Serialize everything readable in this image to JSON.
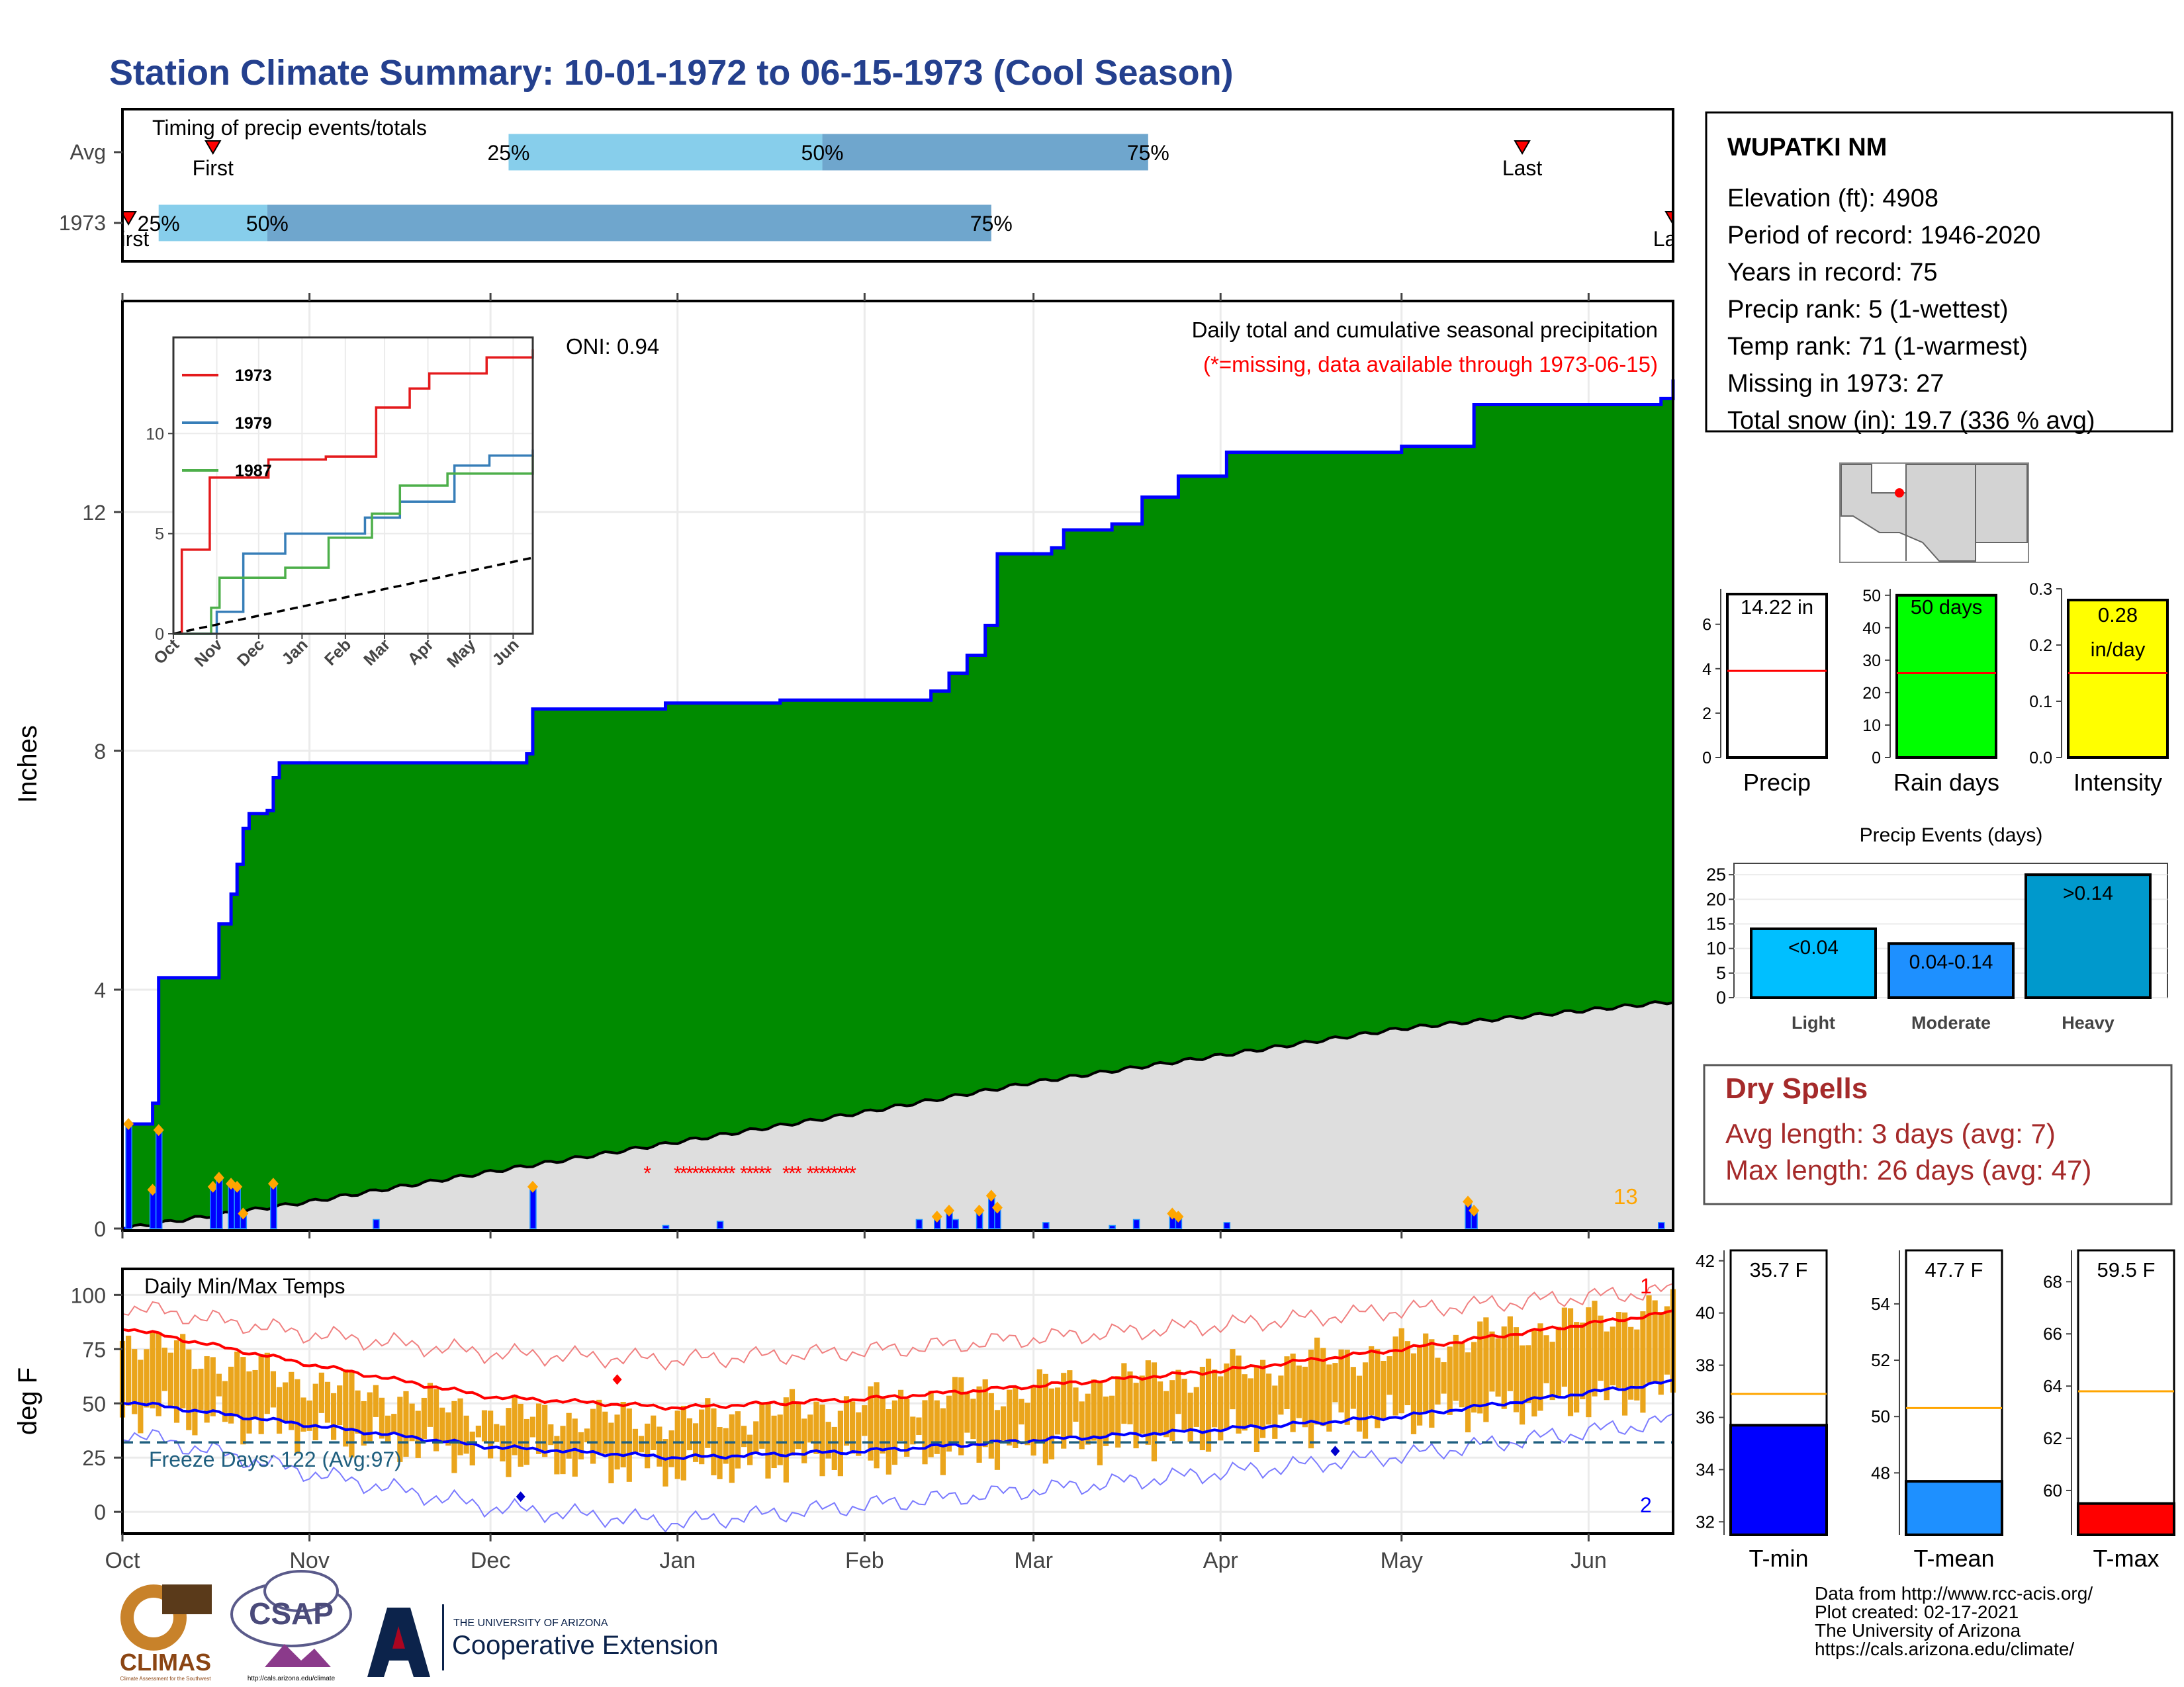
{
  "title": "Station Climate Summary: 10-01-1972 to 06-15-1973 (Cool Season)",
  "colors": {
    "title_blue": "#24408e",
    "precip_green": "#008b00",
    "cum_line_blue": "#0000ff",
    "avg_gray": "#dedede",
    "light_blue": "#87ceeb",
    "mid_blue": "#6fa6cd",
    "red": "#ff0000",
    "orange": "#ffa500",
    "gold": "#eaa51c",
    "yellow": "#ffff00",
    "green_bar": "#00ff00",
    "dry_red": "#a52a2a",
    "event_blue": "#00bfff",
    "event_heavy": "#0099cc",
    "tmean_blue": "#1e90ff",
    "freeze_line": "#1f5f7f"
  },
  "timing_panel": {
    "title": "Timing of precip events/totals",
    "rows": [
      {
        "label": "Avg",
        "first_label": "First",
        "last_label": "Last",
        "first": "1972-10-16",
        "last": "1973-05-21",
        "p25": "1972-12-04",
        "p50": "1973-01-25",
        "p75": "1973-03-20",
        "q_labels": [
          "25%",
          "50%",
          "75%"
        ]
      },
      {
        "label": "1973",
        "first_label": "First",
        "last_label": "Last",
        "first": "1972-10-02",
        "last": "1973-06-15",
        "p25": "1972-10-07",
        "p50": "1972-10-25",
        "p75": "1973-02-22",
        "q_labels": [
          "25%",
          "50%",
          "75%"
        ]
      }
    ]
  },
  "precip_panel": {
    "ylabel": "Inches",
    "yticks": [
      0,
      4,
      8,
      12
    ],
    "ylim": [
      0,
      15.5
    ],
    "header": "Daily total and cumulative seasonal precipitation",
    "missing_note": "(*=missing, data available through 1973-06-15)",
    "oni": "ONI: 0.94",
    "corner_count": "13"
  },
  "inset": {
    "yticks": [
      0,
      5,
      10
    ],
    "xticks": [
      "Oct",
      "Nov",
      "Dec",
      "Jan",
      "Feb",
      "Mar",
      "Apr",
      "May",
      "Jun"
    ],
    "legend": [
      {
        "name": "1973",
        "color": "#e41a1c"
      },
      {
        "name": "1979",
        "color": "#377eb8"
      },
      {
        "name": "1987",
        "color": "#4daf4a"
      }
    ]
  },
  "temp_panel": {
    "ylabel": "deg F",
    "title": "Daily Min/Max Temps",
    "yticks": [
      0,
      25,
      50,
      75,
      100
    ],
    "freeze_text": "Freeze Days: 122 (Avg:97)",
    "record_hi_count": "1",
    "record_lo_count": "2"
  },
  "x_months": [
    "Oct",
    "Nov",
    "Dec",
    "Jan",
    "Feb",
    "Mar",
    "Apr",
    "May",
    "Jun"
  ],
  "station": {
    "name": "WUPATKI NM",
    "lines": [
      "Elevation (ft): 4908",
      "Period of record: 1946-2020",
      "Years in record: 75",
      "Precip rank: 5 (1-wettest)",
      "Temp rank: 71 (1-warmest)",
      "Missing in 1973: 27",
      "Total snow (in): 19.7 (336 % avg)"
    ]
  },
  "summary_bars": [
    {
      "name": "Precip",
      "label": "14.22 in",
      "value": 14.22,
      "avg": 3.9,
      "ymax": 7.6,
      "ticks": [
        0,
        2,
        4,
        6
      ],
      "fill": "#ffffff"
    },
    {
      "name": "Rain days",
      "label": "50 days",
      "value": 50,
      "avg": 26,
      "ymax": 52,
      "ticks": [
        0,
        10,
        20,
        30,
        40,
        50
      ],
      "fill": "#00ff00"
    },
    {
      "name": "Intensity",
      "label": "0.28 in/day",
      "label_lines": [
        "0.28",
        "in/day"
      ],
      "value": 0.28,
      "avg": 0.15,
      "ymax": 0.3,
      "ticks": [
        "0.0",
        "0.1",
        "0.2",
        "0.3"
      ],
      "fill": "#ffff00"
    }
  ],
  "precip_events": {
    "title": "Precip Events (days)",
    "ticks": [
      0,
      5,
      10,
      15,
      20,
      25
    ],
    "bars": [
      {
        "category": "Light",
        "label": "<0.04",
        "value": 14,
        "fill": "#00bfff"
      },
      {
        "category": "Moderate",
        "label": "0.04-0.14",
        "value": 11,
        "fill": "#1e90ff"
      },
      {
        "category": "Heavy",
        "label": ">0.14",
        "value": 25,
        "fill": "#0099cc"
      }
    ]
  },
  "dry_spells": {
    "title": "Dry Spells",
    "avg_line": "Avg length: 3 days (avg: 7)",
    "max_line": "Max length: 26 days (avg: 47)"
  },
  "temp_bars": [
    {
      "name": "T-min",
      "label": "35.7 F",
      "value": 35.7,
      "avg": 36.9,
      "ymin": 31.5,
      "ymax": 42.4,
      "ticks": [
        32,
        34,
        36,
        38,
        40,
        42
      ],
      "fill": "#0000ff"
    },
    {
      "name": "T-mean",
      "label": "47.7 F",
      "value": 47.7,
      "avg": 50.3,
      "ymin": 45.8,
      "ymax": 55.9,
      "ticks": [
        48,
        50,
        52,
        54
      ],
      "fill": "#1e90ff"
    },
    {
      "name": "T-max",
      "label": "59.5 F",
      "value": 59.5,
      "avg": 63.8,
      "ymin": 58.3,
      "ymax": 69.2,
      "ticks": [
        60,
        62,
        64,
        66,
        68
      ],
      "fill": "#ff0000"
    }
  ],
  "footer": {
    "lines": [
      "Data from http://www.rcc-acis.org/",
      "Plot created: 02-17-2021",
      "The University of Arizona",
      "https://cals.arizona.edu/climate/"
    ],
    "climas": "CLIMAS",
    "climas_sub": "Climate Assessment for the Southwest",
    "csap": "CSAP",
    "csap_url": "http://cals.arizona.edu/climate",
    "ua_line1": "THE UNIVERSITY OF ARIZONA",
    "ua_line2": "Cooperative Extension"
  },
  "chart_data": {
    "type": "area",
    "title": "Daily total and cumulative seasonal precipitation",
    "xlabel": "",
    "ylabel": "Inches",
    "ylim": [
      0,
      15.5
    ],
    "x_range": [
      "1972-10-01",
      "1973-06-15"
    ],
    "cumulative_1973": [
      [
        "1972-10-01",
        0
      ],
      [
        "1972-10-02",
        1.75
      ],
      [
        "1972-10-05",
        1.75
      ],
      [
        "1972-10-06",
        2.1
      ],
      [
        "1972-10-07",
        4.2
      ],
      [
        "1972-10-16",
        4.2
      ],
      [
        "1972-10-17",
        5.1
      ],
      [
        "1972-10-19",
        5.6
      ],
      [
        "1972-10-20",
        6.1
      ],
      [
        "1972-10-21",
        6.7
      ],
      [
        "1972-10-22",
        6.95
      ],
      [
        "1972-10-25",
        7.0
      ],
      [
        "1972-10-26",
        7.55
      ],
      [
        "1972-10-27",
        7.8
      ],
      [
        "1972-12-07",
        7.95
      ],
      [
        "1972-12-08",
        8.7
      ],
      [
        "1972-12-30",
        8.8
      ],
      [
        "1973-01-18",
        8.85
      ],
      [
        "1973-02-12",
        9.0
      ],
      [
        "1973-02-15",
        9.3
      ],
      [
        "1973-02-18",
        9.6
      ],
      [
        "1973-02-21",
        10.1
      ],
      [
        "1973-02-23",
        11.3
      ],
      [
        "1973-03-04",
        11.4
      ],
      [
        "1973-03-06",
        11.7
      ],
      [
        "1973-03-14",
        11.8
      ],
      [
        "1973-03-19",
        12.25
      ],
      [
        "1973-03-25",
        12.6
      ],
      [
        "1973-04-02",
        13.0
      ],
      [
        "1973-05-01",
        13.1
      ],
      [
        "1973-05-13",
        13.8
      ],
      [
        "1973-06-13",
        13.9
      ],
      [
        "1973-06-15",
        14.22
      ]
    ],
    "avg_cumulative": [
      [
        "1972-10-01",
        0
      ],
      [
        "1972-11-01",
        0.45
      ],
      [
        "1972-12-01",
        0.95
      ],
      [
        "1973-01-01",
        1.45
      ],
      [
        "1973-02-01",
        1.95
      ],
      [
        "1973-03-01",
        2.45
      ],
      [
        "1973-04-01",
        2.9
      ],
      [
        "1973-05-01",
        3.35
      ],
      [
        "1973-06-15",
        3.8
      ]
    ],
    "daily_bars": [
      [
        "1972-10-02",
        1.75
      ],
      [
        "1972-10-06",
        0.65
      ],
      [
        "1972-10-07",
        1.65
      ],
      [
        "1972-10-16",
        0.7
      ],
      [
        "1972-10-17",
        0.85
      ],
      [
        "1972-10-19",
        0.75
      ],
      [
        "1972-10-20",
        0.7
      ],
      [
        "1972-10-21",
        0.25
      ],
      [
        "1972-10-26",
        0.75
      ],
      [
        "1972-11-12",
        0.15
      ],
      [
        "1972-12-08",
        0.7
      ],
      [
        "1972-12-30",
        0.05
      ],
      [
        "1973-01-08",
        0.12
      ],
      [
        "1973-02-10",
        0.15
      ],
      [
        "1973-02-13",
        0.2
      ],
      [
        "1973-02-15",
        0.3
      ],
      [
        "1973-02-16",
        0.15
      ],
      [
        "1973-02-20",
        0.3
      ],
      [
        "1973-02-22",
        0.55
      ],
      [
        "1973-02-23",
        0.35
      ],
      [
        "1973-03-03",
        0.1
      ],
      [
        "1973-03-14",
        0.05
      ],
      [
        "1973-03-18",
        0.15
      ],
      [
        "1973-03-24",
        0.25
      ],
      [
        "1973-03-25",
        0.2
      ],
      [
        "1973-04-02",
        0.1
      ],
      [
        "1973-05-12",
        0.45
      ],
      [
        "1973-05-13",
        0.3
      ],
      [
        "1973-06-13",
        0.1
      ]
    ],
    "missing_days": [
      "1972-12-27",
      "1973-01-01",
      "1973-01-02",
      "1973-01-03",
      "1973-01-04",
      "1973-01-05",
      "1973-01-06",
      "1973-01-07",
      "1973-01-08",
      "1973-01-09",
      "1973-01-10",
      "1973-01-12",
      "1973-01-13",
      "1973-01-14",
      "1973-01-15",
      "1973-01-16",
      "1973-01-19",
      "1973-01-20",
      "1973-01-21",
      "1973-01-23",
      "1973-01-24",
      "1973-01-25",
      "1973-01-26",
      "1973-01-27",
      "1973-01-28",
      "1973-01-29",
      "1973-01-30"
    ],
    "inset_series": [
      {
        "name": "1973",
        "points": [
          [
            "1972-10-01",
            0
          ],
          [
            "1972-10-07",
            4.2
          ],
          [
            "1972-10-27",
            7.8
          ],
          [
            "1972-12-08",
            8.7
          ],
          [
            "1973-01-18",
            8.85
          ],
          [
            "1973-02-23",
            11.3
          ],
          [
            "1973-03-19",
            12.25
          ],
          [
            "1973-04-02",
            13.0
          ],
          [
            "1973-05-13",
            13.8
          ],
          [
            "1973-06-15",
            14.2
          ]
        ]
      },
      {
        "name": "1979",
        "points": [
          [
            "1972-10-01",
            0
          ],
          [
            "1972-11-01",
            1.1
          ],
          [
            "1972-11-20",
            4.0
          ],
          [
            "1972-12-20",
            5.0
          ],
          [
            "1973-02-15",
            5.8
          ],
          [
            "1973-03-12",
            6.6
          ],
          [
            "1973-04-20",
            8.4
          ],
          [
            "1973-05-15",
            8.9
          ],
          [
            "1973-06-15",
            9.2
          ]
        ]
      },
      {
        "name": "1987",
        "points": [
          [
            "1972-10-01",
            0
          ],
          [
            "1972-10-28",
            1.3
          ],
          [
            "1972-11-03",
            2.8
          ],
          [
            "1972-12-20",
            3.3
          ],
          [
            "1973-01-20",
            4.8
          ],
          [
            "1973-02-20",
            6.0
          ],
          [
            "1973-03-12",
            7.4
          ],
          [
            "1973-04-15",
            8.0
          ],
          [
            "1973-06-15",
            8.9
          ]
        ]
      },
      {
        "name": "avg",
        "points": [
          [
            "1972-10-01",
            0
          ],
          [
            "1973-06-15",
            3.8
          ]
        ]
      }
    ],
    "temps": {
      "tmax_avg": [
        [
          "1972-10-01",
          85
        ],
        [
          "1972-11-01",
          68
        ],
        [
          "1972-12-01",
          53
        ],
        [
          "1973-01-01",
          48
        ],
        [
          "1973-02-01",
          52
        ],
        [
          "1973-03-01",
          58
        ],
        [
          "1973-04-01",
          65
        ],
        [
          "1973-05-01",
          75
        ],
        [
          "1973-06-15",
          92
        ]
      ],
      "tmin_avg": [
        [
          "1972-10-01",
          51
        ],
        [
          "1972-11-01",
          40
        ],
        [
          "1972-12-01",
          30
        ],
        [
          "1973-01-01",
          25
        ],
        [
          "1973-02-01",
          28
        ],
        [
          "1973-03-01",
          33
        ],
        [
          "1973-04-01",
          38
        ],
        [
          "1973-05-01",
          44
        ],
        [
          "1973-06-15",
          60
        ]
      ],
      "record_hi": [
        [
          "1972-10-01",
          95
        ],
        [
          "1972-11-01",
          82
        ],
        [
          "1972-12-01",
          73
        ],
        [
          "1973-01-01",
          70
        ],
        [
          "1973-02-01",
          74
        ],
        [
          "1973-03-01",
          80
        ],
        [
          "1973-04-01",
          86
        ],
        [
          "1973-05-01",
          93
        ],
        [
          "1973-06-15",
          102
        ]
      ],
      "record_lo": [
        [
          "1972-10-01",
          37
        ],
        [
          "1972-11-01",
          18
        ],
        [
          "1972-12-01",
          2
        ],
        [
          "1973-01-01",
          -5
        ],
        [
          "1973-02-01",
          3
        ],
        [
          "1973-03-01",
          10
        ],
        [
          "1973-04-01",
          18
        ],
        [
          "1973-05-01",
          26
        ],
        [
          "1973-06-15",
          42
        ]
      ],
      "daily_range_anchor": [
        [
          "1972-10-01",
          48,
          80
        ],
        [
          "1972-11-01",
          37,
          60
        ],
        [
          "1972-12-01",
          26,
          45
        ],
        [
          "1973-01-01",
          20,
          42
        ],
        [
          "1973-02-01",
          25,
          50
        ],
        [
          "1973-03-01",
          30,
          57
        ],
        [
          "1973-04-01",
          36,
          65
        ],
        [
          "1973-05-01",
          44,
          75
        ],
        [
          "1973-06-15",
          55,
          95
        ]
      ],
      "freeze_threshold": 32,
      "record_markers": [
        [
          "1972-12-22",
          61,
          "hi"
        ],
        [
          "1972-12-06",
          7,
          "lo"
        ],
        [
          "1973-04-20",
          28,
          "lo"
        ]
      ]
    }
  }
}
